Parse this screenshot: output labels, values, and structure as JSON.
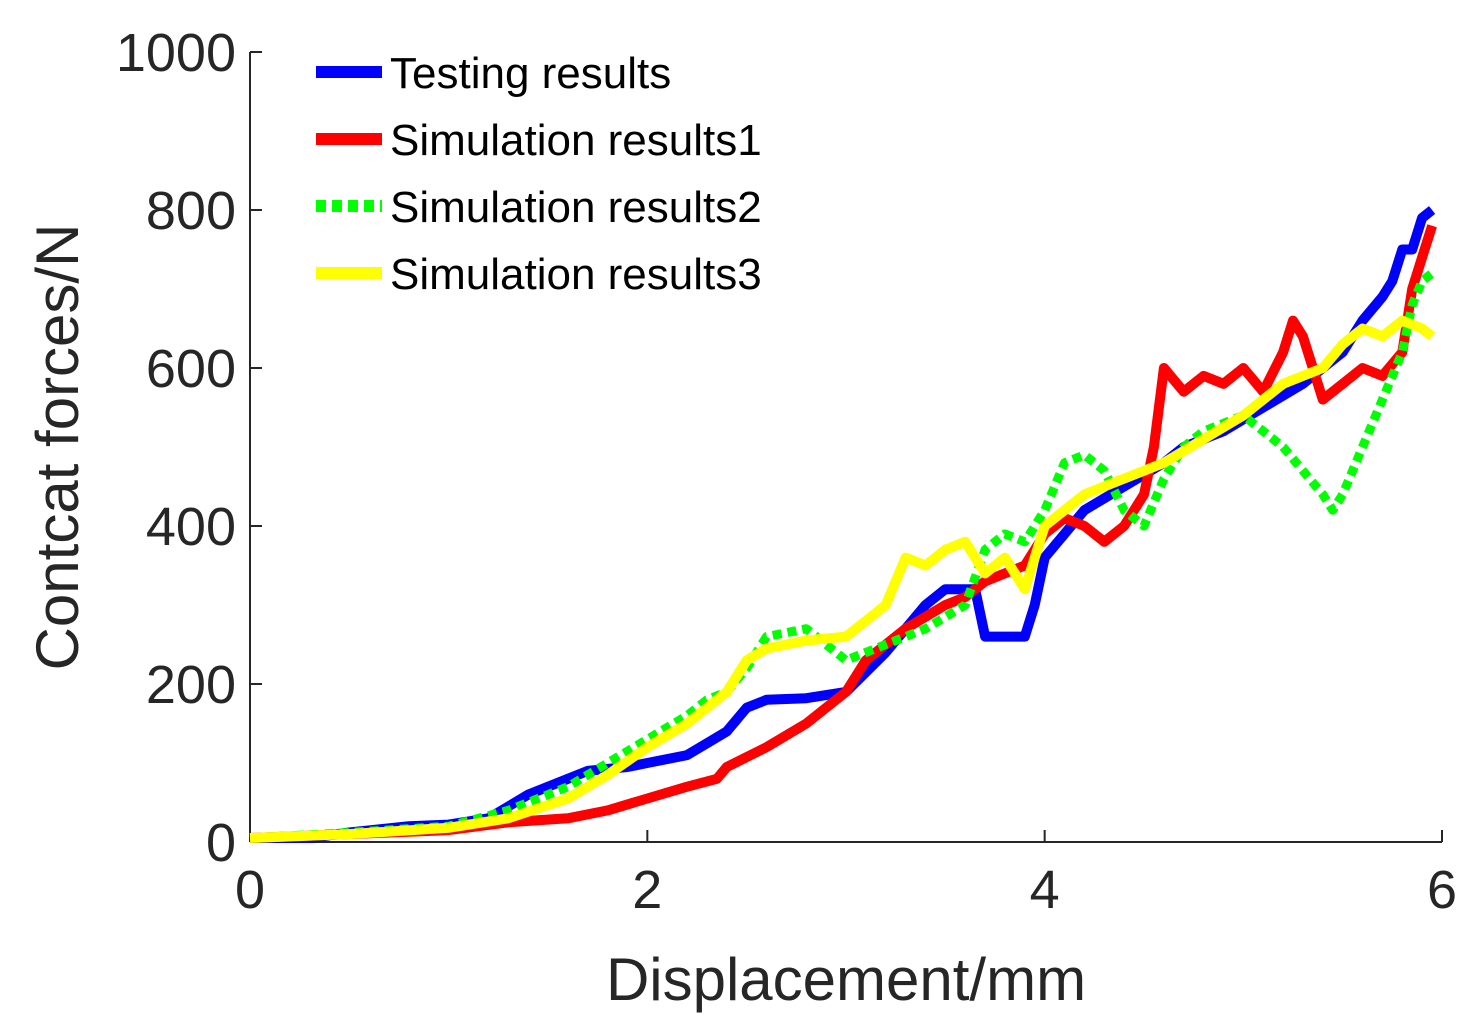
{
  "chart_data": {
    "type": "line",
    "title": "",
    "xlabel": "Displacement/mm",
    "ylabel": "Contcat forces/N",
    "xlim": [
      0,
      6
    ],
    "ylim": [
      0,
      1000
    ],
    "xticks": [
      0,
      2,
      4,
      6
    ],
    "yticks": [
      0,
      200,
      400,
      600,
      800,
      1000
    ],
    "grid": false,
    "legend_position": "top-left",
    "series": [
      {
        "name": "Testing results",
        "color": "#0000ff",
        "style": "solid",
        "x": [
          0,
          0.3,
          0.5,
          0.8,
          1.0,
          1.2,
          1.3,
          1.4,
          1.6,
          1.7,
          1.9,
          2.0,
          2.2,
          2.3,
          2.4,
          2.5,
          2.6,
          2.8,
          3.0,
          3.2,
          3.4,
          3.5,
          3.65,
          3.7,
          3.85,
          3.9,
          3.95,
          4.0,
          4.2,
          4.4,
          4.6,
          4.7,
          4.9,
          5.1,
          5.3,
          5.5,
          5.6,
          5.7,
          5.75,
          5.8,
          5.85,
          5.9,
          5.95
        ],
        "y": [
          5,
          5,
          12,
          20,
          22,
          30,
          45,
          60,
          80,
          90,
          95,
          100,
          110,
          125,
          140,
          170,
          180,
          182,
          190,
          240,
          300,
          320,
          320,
          260,
          260,
          260,
          300,
          360,
          420,
          450,
          480,
          500,
          520,
          550,
          580,
          620,
          660,
          690,
          710,
          750,
          750,
          790,
          800
        ]
      },
      {
        "name": "Simulation results1",
        "color": "#ff0000",
        "style": "solid",
        "x": [
          0,
          0.5,
          1.0,
          1.3,
          1.6,
          1.8,
          2.0,
          2.2,
          2.35,
          2.4,
          2.6,
          2.8,
          3.0,
          3.1,
          3.3,
          3.5,
          3.6,
          3.7,
          3.8,
          3.9,
          4.0,
          4.1,
          4.2,
          4.3,
          4.4,
          4.5,
          4.55,
          4.6,
          4.7,
          4.8,
          4.9,
          5.0,
          5.1,
          5.2,
          5.25,
          5.3,
          5.4,
          5.5,
          5.6,
          5.7,
          5.8,
          5.85,
          5.9,
          5.95
        ],
        "y": [
          5,
          10,
          15,
          25,
          30,
          40,
          55,
          70,
          80,
          95,
          120,
          150,
          190,
          230,
          270,
          300,
          310,
          330,
          340,
          350,
          390,
          410,
          400,
          380,
          400,
          440,
          500,
          600,
          570,
          590,
          580,
          600,
          570,
          620,
          660,
          640,
          560,
          580,
          600,
          590,
          620,
          700,
          740,
          780
        ]
      },
      {
        "name": "Simulation results2",
        "color": "#00ff00",
        "style": "dotted",
        "x": [
          0,
          0.5,
          1.0,
          1.3,
          1.6,
          1.8,
          2.0,
          2.2,
          2.3,
          2.4,
          2.5,
          2.6,
          2.8,
          3.0,
          3.2,
          3.4,
          3.6,
          3.7,
          3.8,
          3.9,
          4.0,
          4.1,
          4.2,
          4.3,
          4.4,
          4.5,
          4.6,
          4.7,
          4.8,
          4.9,
          5.0,
          5.1,
          5.2,
          5.3,
          5.4,
          5.45,
          5.5,
          5.6,
          5.7,
          5.8,
          5.85,
          5.9,
          5.95
        ],
        "y": [
          5,
          12,
          20,
          40,
          70,
          100,
          130,
          160,
          180,
          190,
          220,
          260,
          270,
          230,
          250,
          270,
          300,
          370,
          390,
          380,
          420,
          480,
          490,
          470,
          420,
          400,
          460,
          500,
          520,
          530,
          540,
          520,
          500,
          470,
          440,
          420,
          440,
          500,
          560,
          620,
          680,
          710,
          720
        ]
      },
      {
        "name": "Simulation results3",
        "color": "#ffff00",
        "style": "solid",
        "x": [
          0,
          0.5,
          1.0,
          1.3,
          1.6,
          1.8,
          2.0,
          2.2,
          2.4,
          2.5,
          2.6,
          2.8,
          3.0,
          3.2,
          3.3,
          3.4,
          3.5,
          3.6,
          3.7,
          3.8,
          3.9,
          4.0,
          4.2,
          4.4,
          4.6,
          4.8,
          5.0,
          5.2,
          5.4,
          5.5,
          5.6,
          5.7,
          5.8,
          5.9,
          5.95
        ],
        "y": [
          5,
          10,
          18,
          30,
          55,
          85,
          120,
          150,
          190,
          230,
          245,
          255,
          260,
          300,
          360,
          350,
          370,
          380,
          340,
          360,
          320,
          400,
          440,
          460,
          480,
          510,
          540,
          580,
          600,
          630,
          650,
          640,
          660,
          650,
          640
        ]
      }
    ]
  }
}
